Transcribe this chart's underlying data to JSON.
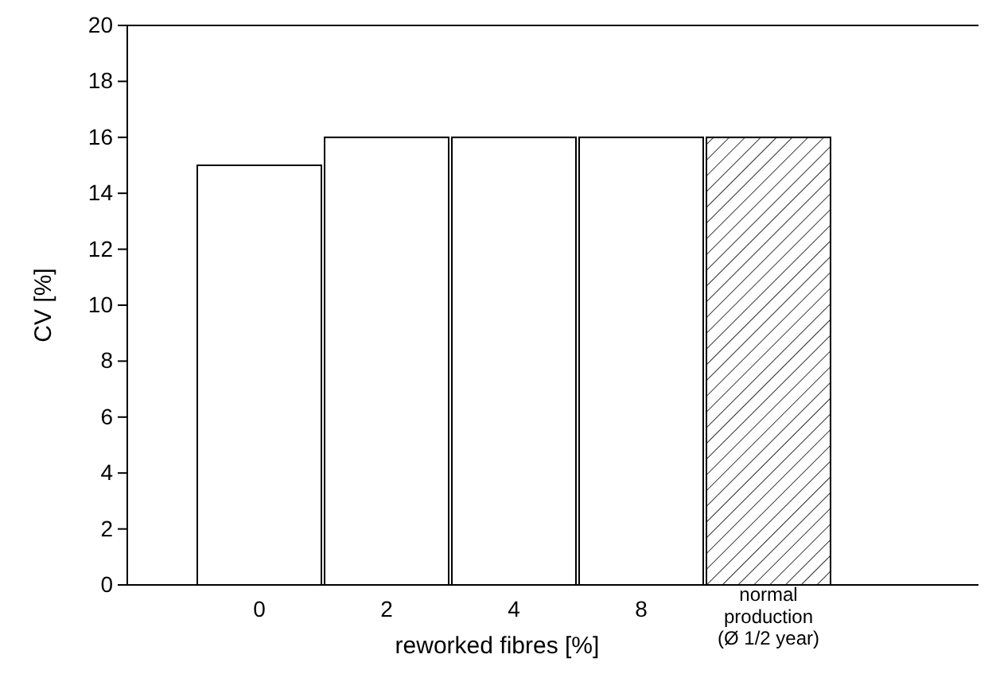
{
  "chart_data": {
    "type": "bar",
    "categories": [
      "0",
      "2",
      "4",
      "8",
      "normal production (Ø 1/2 year)"
    ],
    "values": [
      15,
      16,
      16,
      16,
      16
    ],
    "colors": [
      "#ffffff",
      "#ffffff",
      "#ffffff",
      "#ffffff",
      "#000000"
    ],
    "xlabel": "reworked fibres [%]",
    "ylabel": "CV [%]",
    "ylim": [
      0,
      20
    ],
    "yticks": [
      0,
      2,
      4,
      6,
      8,
      10,
      12,
      14,
      16,
      18,
      20
    ],
    "grid": false
  }
}
